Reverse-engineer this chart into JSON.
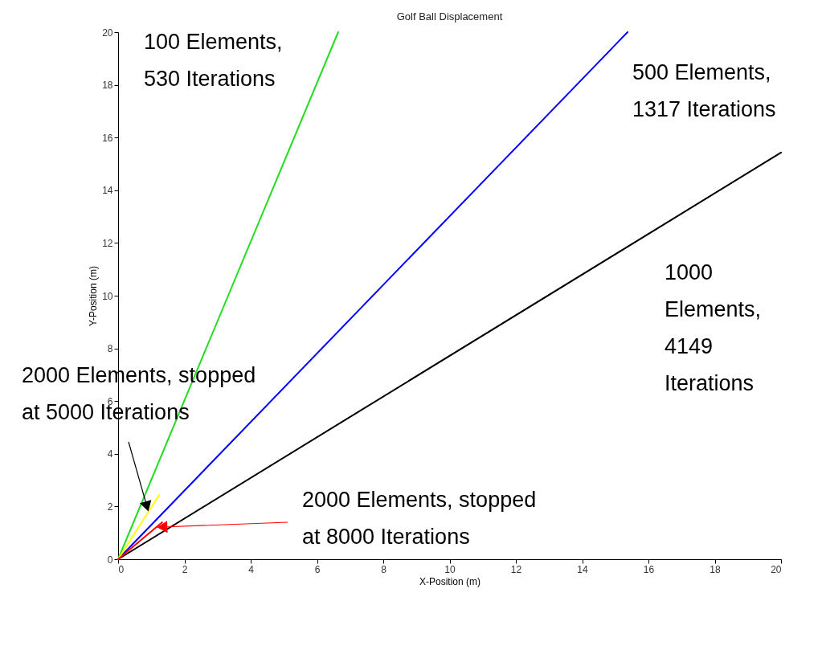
{
  "chart_data": {
    "type": "line",
    "title": "Golf Ball Displacement",
    "xlabel": "X-Position (m)",
    "ylabel": "Y-Position (m)",
    "xlim": [
      0,
      20
    ],
    "ylim": [
      0,
      20
    ],
    "xticks": [
      0,
      2,
      4,
      6,
      8,
      10,
      12,
      14,
      16,
      18,
      20
    ],
    "yticks": [
      0,
      2,
      4,
      6,
      8,
      10,
      12,
      14,
      16,
      18,
      20
    ],
    "grid": false,
    "series": [
      {
        "name": "100 Elements,\n530 Iterations",
        "color": "#22dd22",
        "x": [
          0,
          6.64
        ],
        "values": [
          0,
          20
        ]
      },
      {
        "name": "500 Elements,\n1317 Iterations",
        "color": "#0000ff",
        "x": [
          0,
          15.37
        ],
        "values": [
          0,
          20
        ]
      },
      {
        "name": "1000\nElements,\n4149\nIterations",
        "color": "#000000",
        "x": [
          0,
          20
        ],
        "values": [
          0,
          15.43
        ]
      },
      {
        "color": "#ffff00",
        "x": [
          0,
          1.24
        ],
        "values": [
          0,
          2.44
        ]
      },
      {
        "color": "#ff0000",
        "x": [
          0,
          1.33
        ],
        "values": [
          0,
          1.4
        ]
      }
    ],
    "annotations": [
      {
        "text": "2000 Elements, stopped\nat 5000 Iterations",
        "x": 0.87,
        "y": 2.0
      },
      {
        "text": "2000 Elements, stopped\nat 8000 Iterations",
        "x": 1.33,
        "y": 1.22
      }
    ]
  }
}
